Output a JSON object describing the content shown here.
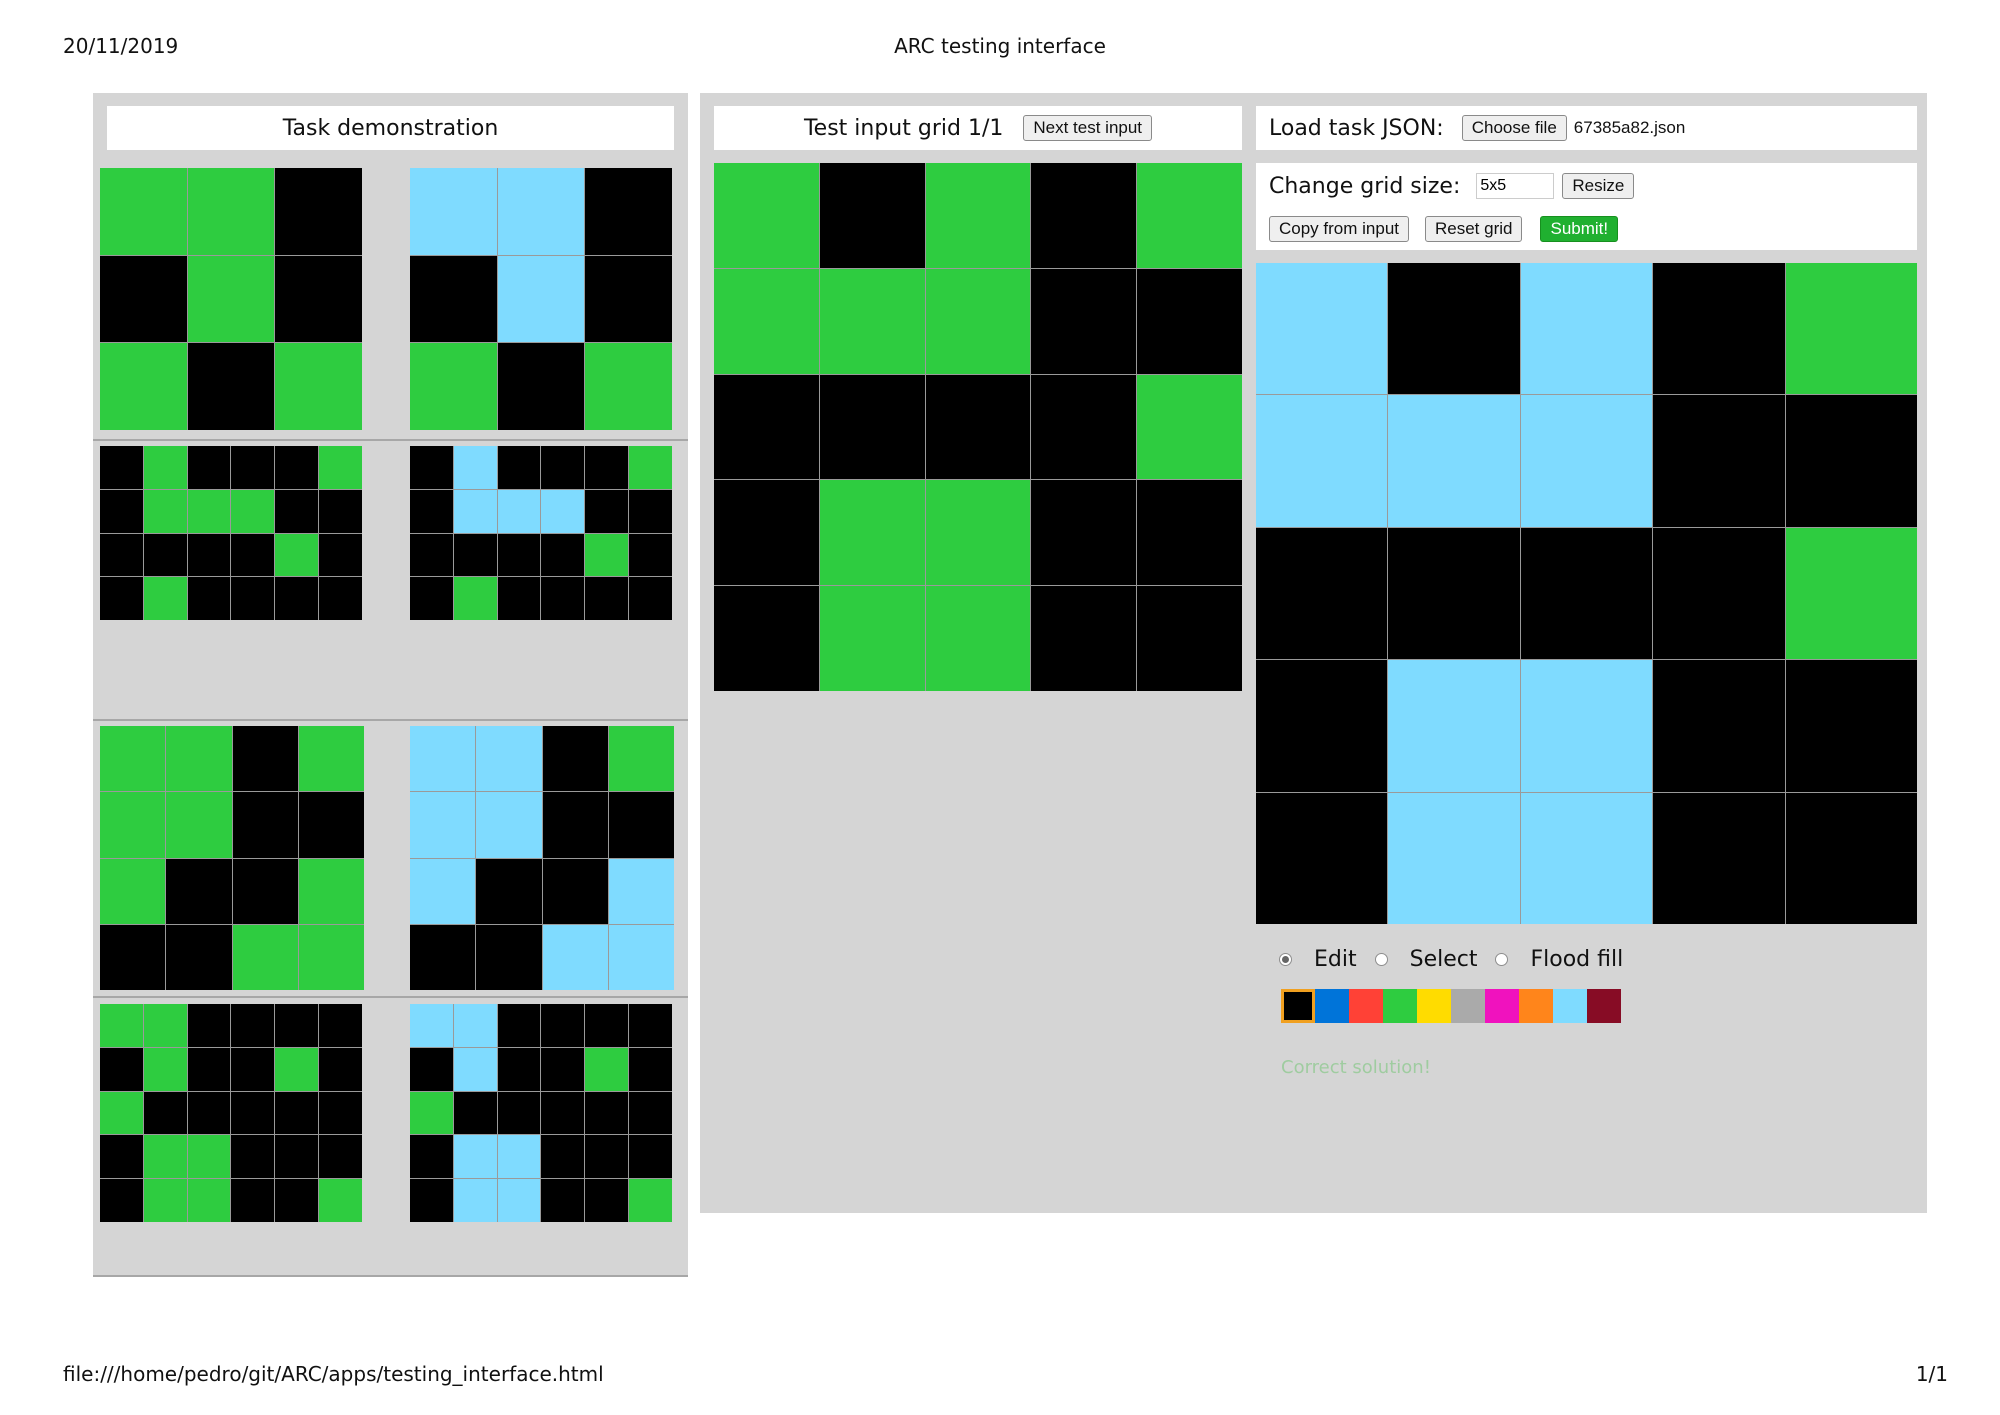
{
  "print": {
    "date": "20/11/2019",
    "title": "ARC testing interface",
    "url": "file:///home/pedro/git/ARC/apps/testing_interface.html",
    "page": "1/1"
  },
  "colors": {
    "0": "#000000",
    "1": "#0074d9",
    "2": "#ff4136",
    "3": "#2ecc40",
    "4": "#ffdc00",
    "5": "#aaaaaa",
    "6": "#f012be",
    "7": "#ff851b",
    "8": "#7fdbff",
    "9": "#870c25"
  },
  "demo": {
    "title": "Task demonstration",
    "pairs": [
      {
        "input": [
          [
            3,
            3,
            0
          ],
          [
            0,
            3,
            0
          ],
          [
            3,
            0,
            3
          ]
        ],
        "output": [
          [
            8,
            8,
            0
          ],
          [
            0,
            8,
            0
          ],
          [
            3,
            0,
            3
          ]
        ]
      },
      {
        "input": [
          [
            0,
            3,
            0,
            0,
            0,
            3
          ],
          [
            0,
            3,
            3,
            3,
            0,
            0
          ],
          [
            0,
            0,
            0,
            0,
            3,
            0
          ],
          [
            0,
            3,
            0,
            0,
            0,
            0
          ]
        ],
        "output": [
          [
            0,
            8,
            0,
            0,
            0,
            3
          ],
          [
            0,
            8,
            8,
            8,
            0,
            0
          ],
          [
            0,
            0,
            0,
            0,
            3,
            0
          ],
          [
            0,
            3,
            0,
            0,
            0,
            0
          ]
        ]
      },
      {
        "input": [
          [
            3,
            3,
            0,
            3
          ],
          [
            3,
            3,
            0,
            0
          ],
          [
            3,
            0,
            0,
            3
          ],
          [
            0,
            0,
            3,
            3
          ]
        ],
        "output": [
          [
            8,
            8,
            0,
            3
          ],
          [
            8,
            8,
            0,
            0
          ],
          [
            8,
            0,
            0,
            8
          ],
          [
            0,
            0,
            8,
            8
          ]
        ]
      },
      {
        "input": [
          [
            3,
            3,
            0,
            0,
            0,
            0
          ],
          [
            0,
            3,
            0,
            0,
            3,
            0
          ],
          [
            3,
            0,
            0,
            0,
            0,
            0
          ],
          [
            0,
            3,
            3,
            0,
            0,
            0
          ],
          [
            0,
            3,
            3,
            0,
            0,
            3
          ]
        ],
        "output": [
          [
            8,
            8,
            0,
            0,
            0,
            0
          ],
          [
            0,
            8,
            0,
            0,
            3,
            0
          ],
          [
            3,
            0,
            0,
            0,
            0,
            0
          ],
          [
            0,
            8,
            8,
            0,
            0,
            0
          ],
          [
            0,
            8,
            8,
            0,
            0,
            3
          ]
        ]
      }
    ]
  },
  "test_input": {
    "title": "Test input grid 1/1",
    "next_label": "Next test input",
    "grid": [
      [
        3,
        0,
        3,
        0,
        3
      ],
      [
        3,
        3,
        3,
        0,
        0
      ],
      [
        0,
        0,
        0,
        0,
        3
      ],
      [
        0,
        3,
        3,
        0,
        0
      ],
      [
        0,
        3,
        3,
        0,
        0
      ]
    ]
  },
  "load": {
    "label": "Load task JSON:",
    "choose_label": "Choose file",
    "filename": "67385a82.json"
  },
  "resize": {
    "label": "Change grid size:",
    "value": "5x5",
    "resize_label": "Resize",
    "copy_label": "Copy from input",
    "reset_label": "Reset grid",
    "submit_label": "Submit!"
  },
  "output": {
    "grid": [
      [
        8,
        0,
        8,
        0,
        3
      ],
      [
        8,
        8,
        8,
        0,
        0
      ],
      [
        0,
        0,
        0,
        0,
        3
      ],
      [
        0,
        8,
        8,
        0,
        0
      ],
      [
        0,
        8,
        8,
        0,
        0
      ]
    ]
  },
  "modes": {
    "edit": "Edit",
    "select": "Select",
    "flood": "Flood fill",
    "selected": "edit"
  },
  "palette": {
    "colors": [
      "#000000",
      "#0074d9",
      "#ff4136",
      "#2ecc40",
      "#ffdc00",
      "#aaaaaa",
      "#f012be",
      "#ff851b",
      "#7fdbff",
      "#870c25"
    ],
    "selected_index": 0
  },
  "status": "Correct solution!"
}
